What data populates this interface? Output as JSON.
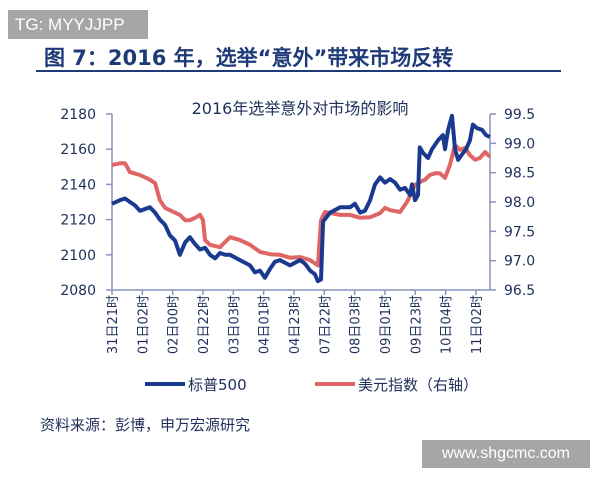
{
  "watermark_top": "TG: MYYJJPP",
  "figure_title": "图 7：2016 年，选举“意外”带来市场反转",
  "source": "资料来源：彭博，申万宏源研究",
  "watermark_bottom": "www.shgcmc.com",
  "chart_data": {
    "type": "line",
    "title": "2016年选举意外对市场的影响",
    "categories": [
      "31日21时",
      "01日02时",
      "02日00时",
      "02日22时",
      "03日03时",
      "04日01时",
      "04日23时",
      "07日22时",
      "08日03时",
      "09日01时",
      "09日23时",
      "10日04时",
      "11日02时"
    ],
    "y_left": {
      "ylim": [
        2080,
        2180
      ],
      "ticks": [
        "2080",
        "2100",
        "2120",
        "2140",
        "2160",
        "2180"
      ]
    },
    "y_right": {
      "ylim": [
        96.5,
        99.5
      ],
      "ticks": [
        "96.5",
        "97.0",
        "97.5",
        "98.0",
        "98.5",
        "99.0",
        "99.5"
      ]
    },
    "legend_position": "bottom",
    "grid": false,
    "series": [
      {
        "name": "标普500",
        "axis": "left",
        "color": "#1a3a8f",
        "x": [
          0,
          0.26,
          0.43,
          0.76,
          0.92,
          1.25,
          1.42,
          1.58,
          1.75,
          1.91,
          2.08,
          2.24,
          2.41,
          2.57,
          2.74,
          2.9,
          3.07,
          3.23,
          3.4,
          3.56,
          3.73,
          3.89,
          4.22,
          4.55,
          4.71,
          4.88,
          5.04,
          5.21,
          5.37,
          5.54,
          5.87,
          6.2,
          6.36,
          6.53,
          6.69,
          6.79,
          6.89,
          6.96,
          7.19,
          7.52,
          7.85,
          8.01,
          8.18,
          8.34,
          8.51,
          8.67,
          8.84,
          9.0,
          9.17,
          9.33,
          9.5,
          9.66,
          9.83,
          9.89,
          9.99,
          10.09,
          10.15,
          10.25,
          10.42,
          10.55,
          10.75,
          10.91,
          10.98,
          11.08,
          11.21,
          11.31,
          11.41,
          11.54,
          11.67,
          11.8,
          11.9,
          12.03,
          12.2,
          12.33,
          12.46
        ],
        "values": [
          2129,
          2131,
          2132,
          2128,
          2125,
          2127,
          2124,
          2120,
          2117,
          2111,
          2108,
          2100,
          2107,
          2110,
          2106,
          2103,
          2104,
          2100,
          2098,
          2101,
          2100,
          2100,
          2097,
          2094,
          2090,
          2091,
          2087,
          2092,
          2096,
          2097,
          2094,
          2097,
          2095,
          2091,
          2089,
          2085,
          2086,
          2119,
          2124,
          2127,
          2127,
          2129,
          2124,
          2125,
          2131,
          2140,
          2144,
          2141,
          2143,
          2141,
          2137,
          2138,
          2134,
          2140,
          2131,
          2134,
          2161,
          2158,
          2155,
          2160,
          2165,
          2168,
          2160,
          2171,
          2179,
          2160,
          2154,
          2157,
          2160,
          2165,
          2174,
          2172,
          2171,
          2168,
          2167
        ]
      },
      {
        "name": "美元指数（右轴）",
        "axis": "right",
        "color": "#e06666",
        "x": [
          0,
          0.26,
          0.43,
          0.59,
          0.92,
          1.25,
          1.42,
          1.58,
          1.75,
          1.91,
          2.24,
          2.41,
          2.57,
          2.74,
          2.9,
          3.0,
          3.07,
          3.23,
          3.56,
          3.89,
          4.22,
          4.55,
          4.88,
          5.21,
          5.54,
          5.87,
          6.2,
          6.53,
          6.79,
          6.89,
          7.02,
          7.52,
          7.85,
          8.18,
          8.51,
          8.84,
          9.0,
          9.17,
          9.5,
          9.66,
          9.76,
          9.83,
          9.99,
          10.15,
          10.32,
          10.48,
          10.65,
          10.81,
          10.98,
          11.14,
          11.31,
          11.47,
          11.64,
          11.8,
          11.97,
          12.13,
          12.3,
          12.46
        ],
        "values": [
          98.63,
          98.66,
          98.66,
          98.51,
          98.46,
          98.38,
          98.32,
          98.03,
          97.9,
          97.86,
          97.78,
          97.69,
          97.69,
          97.73,
          97.78,
          97.69,
          97.35,
          97.27,
          97.23,
          97.4,
          97.35,
          97.27,
          97.15,
          97.11,
          97.1,
          97.05,
          97.06,
          97.01,
          96.92,
          97.69,
          97.83,
          97.78,
          97.78,
          97.73,
          97.74,
          97.81,
          97.9,
          97.86,
          97.83,
          97.95,
          98.03,
          98.12,
          98.29,
          98.34,
          98.38,
          98.46,
          98.49,
          98.49,
          98.41,
          98.63,
          98.97,
          98.89,
          98.92,
          98.8,
          98.72,
          98.75,
          98.85,
          98.77
        ]
      }
    ]
  }
}
